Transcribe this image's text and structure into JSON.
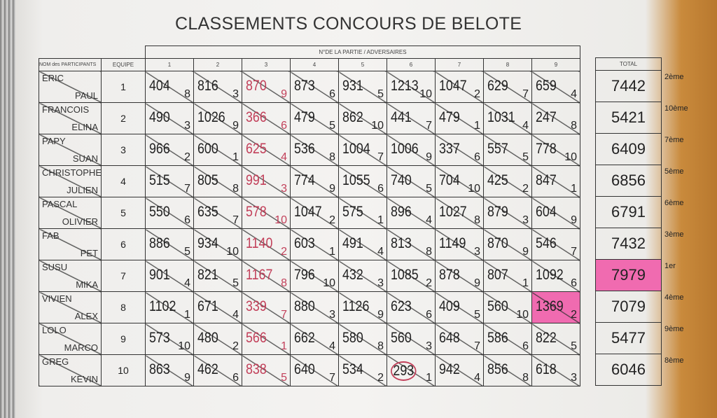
{
  "title": "CLASSEMENTS CONCOURS DE BELOTE",
  "headers": {
    "names": "NOM des PARTICIPANTS",
    "team": "EQUIPE",
    "games_group": "N°DE LA PARTIE / ADVERSAIRES",
    "games": [
      "1",
      "2",
      "3",
      "4",
      "5",
      "6",
      "7",
      "8",
      "9"
    ],
    "total": "TOTAL"
  },
  "highlight_color": "#f06bb0",
  "teams": [
    {
      "p1": "ERIC",
      "p2": "PAUL",
      "team": "1",
      "games": [
        [
          "404",
          "8"
        ],
        [
          "816",
          "3"
        ],
        [
          "870",
          "9"
        ],
        [
          "873",
          "6"
        ],
        [
          "931",
          "5"
        ],
        [
          "1213",
          "10"
        ],
        [
          "1047",
          "2"
        ],
        [
          "629",
          "7"
        ],
        [
          "659",
          "4"
        ]
      ],
      "total": "7442",
      "rank": "2ème"
    },
    {
      "p1": "FRANCOIS",
      "p2": "ELINA",
      "team": "2",
      "games": [
        [
          "490",
          "3"
        ],
        [
          "1026",
          "9"
        ],
        [
          "366",
          "6"
        ],
        [
          "479",
          "5"
        ],
        [
          "862",
          "10"
        ],
        [
          "441",
          "7"
        ],
        [
          "479",
          "1"
        ],
        [
          "1031",
          "4"
        ],
        [
          "247",
          "8"
        ]
      ],
      "total": "5421",
      "rank": "10ème"
    },
    {
      "p1": "PAPY",
      "p2": "SUAN",
      "team": "3",
      "games": [
        [
          "966",
          "2"
        ],
        [
          "600",
          "1"
        ],
        [
          "625",
          "4"
        ],
        [
          "536",
          "8"
        ],
        [
          "1004",
          "7"
        ],
        [
          "1006",
          "9"
        ],
        [
          "337",
          "6"
        ],
        [
          "557",
          "5"
        ],
        [
          "778",
          "10"
        ]
      ],
      "total": "6409",
      "rank": "7ème"
    },
    {
      "p1": "CHRISTOPHE",
      "p2": "JULIEN",
      "team": "4",
      "games": [
        [
          "515",
          "7"
        ],
        [
          "805",
          "8"
        ],
        [
          "991",
          "3"
        ],
        [
          "774",
          "9"
        ],
        [
          "1055",
          "6"
        ],
        [
          "740",
          "5"
        ],
        [
          "704",
          "10"
        ],
        [
          "425",
          "2"
        ],
        [
          "847",
          "1"
        ]
      ],
      "total": "6856",
      "rank": "5ème"
    },
    {
      "p1": "PASCAL",
      "p2": "OLIVIER",
      "team": "5",
      "games": [
        [
          "550",
          "6"
        ],
        [
          "635",
          "7"
        ],
        [
          "578",
          "10"
        ],
        [
          "1047",
          "2"
        ],
        [
          "575",
          "1"
        ],
        [
          "896",
          "4"
        ],
        [
          "1027",
          "8"
        ],
        [
          "879",
          "3"
        ],
        [
          "604",
          "9"
        ]
      ],
      "total": "6791",
      "rank": "6ème"
    },
    {
      "p1": "FAB",
      "p2": "PET",
      "team": "6",
      "games": [
        [
          "886",
          "5"
        ],
        [
          "934",
          "10"
        ],
        [
          "1140",
          "2"
        ],
        [
          "603",
          "1"
        ],
        [
          "491",
          "4"
        ],
        [
          "813",
          "8"
        ],
        [
          "1149",
          "3"
        ],
        [
          "870",
          "9"
        ],
        [
          "546",
          "7"
        ]
      ],
      "total": "7432",
      "rank": "3ème"
    },
    {
      "p1": "SUSU",
      "p2": "MIKA",
      "team": "7",
      "games": [
        [
          "901",
          "4"
        ],
        [
          "821",
          "5"
        ],
        [
          "1167",
          "8"
        ],
        [
          "796",
          "10"
        ],
        [
          "432",
          "3"
        ],
        [
          "1085",
          "2"
        ],
        [
          "878",
          "9"
        ],
        [
          "807",
          "1"
        ],
        [
          "1092",
          "6"
        ]
      ],
      "total": "7979",
      "rank": "1er",
      "highlight_total": true
    },
    {
      "p1": "VIVIEN",
      "p2": "ALEX",
      "team": "8",
      "games": [
        [
          "1102",
          "1"
        ],
        [
          "671",
          "4"
        ],
        [
          "339",
          "7"
        ],
        [
          "880",
          "3"
        ],
        [
          "1126",
          "9"
        ],
        [
          "623",
          "6"
        ],
        [
          "409",
          "5"
        ],
        [
          "560",
          "10"
        ],
        [
          "1369",
          "2"
        ]
      ],
      "total": "7079",
      "rank": "4ème",
      "highlight_game": 9
    },
    {
      "p1": "LOLO",
      "p2": "MARCO",
      "team": "9",
      "games": [
        [
          "573",
          "10"
        ],
        [
          "480",
          "2"
        ],
        [
          "566",
          "1"
        ],
        [
          "662",
          "4"
        ],
        [
          "580",
          "8"
        ],
        [
          "560",
          "3"
        ],
        [
          "648",
          "7"
        ],
        [
          "586",
          "6"
        ],
        [
          "822",
          "5"
        ]
      ],
      "total": "5477",
      "rank": "9ème"
    },
    {
      "p1": "GREG",
      "p2": "KEVIN",
      "team": "10",
      "games": [
        [
          "863",
          "9"
        ],
        [
          "462",
          "6"
        ],
        [
          "838",
          "5"
        ],
        [
          "640",
          "7"
        ],
        [
          "534",
          "2"
        ],
        [
          "293",
          "1"
        ],
        [
          "942",
          "4"
        ],
        [
          "856",
          "8"
        ],
        [
          "618",
          "3"
        ]
      ],
      "total": "6046",
      "rank": "8ème",
      "circled_game": 6
    }
  ]
}
